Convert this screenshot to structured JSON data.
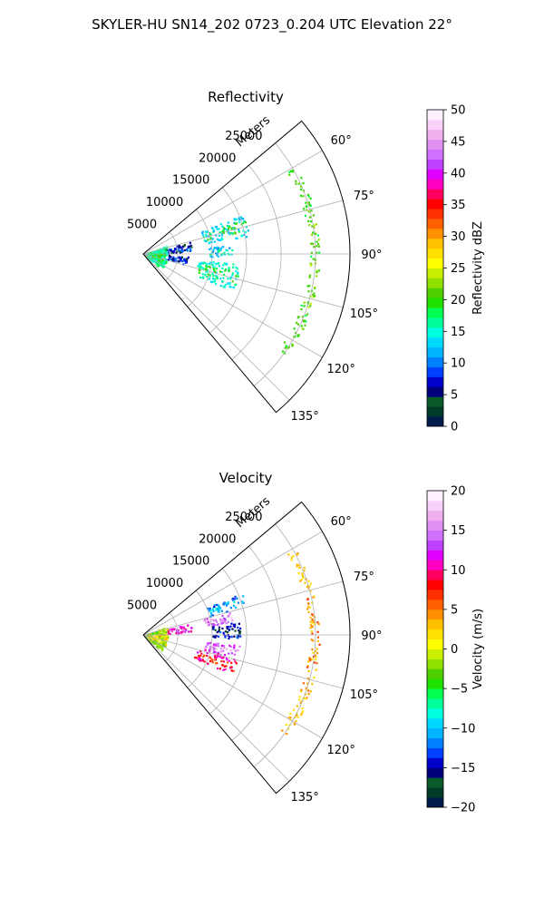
{
  "title": "SKYLER-HU  SN14_202  0723_0.204 UTC Elevation 22°",
  "chart_data": [
    {
      "type": "polar-sector",
      "title": "Reflectivity",
      "range_label": "Meters",
      "r_ticks": [
        5000,
        10000,
        15000,
        20000,
        25000
      ],
      "r_tick_labels": [
        "5000",
        "10000",
        "15000",
        "20000",
        "25000"
      ],
      "r_max": 30000,
      "theta_range": [
        50,
        140
      ],
      "theta_ticks": [
        60,
        75,
        90,
        105,
        120,
        135
      ],
      "theta_tick_labels": [
        "60°",
        "75°",
        "90°",
        "105°",
        "120°",
        "135°"
      ],
      "grid": true,
      "colorbar": {
        "label": "Reflectivity dBZ",
        "range": [
          0,
          50
        ],
        "ticks": [
          0,
          5,
          10,
          15,
          20,
          25,
          30,
          35,
          40,
          45,
          50
        ],
        "tick_labels": [
          "0",
          "5",
          "10",
          "15",
          "20",
          "25",
          "30",
          "35",
          "40",
          "45",
          "50"
        ],
        "colors": [
          "#001a4d",
          "#003b2a",
          "#0a5a2a",
          "#00007a",
          "#0000c8",
          "#0040ff",
          "#0080ff",
          "#00b4ff",
          "#00d8ff",
          "#00ffe0",
          "#00ff9a",
          "#00ff50",
          "#20e000",
          "#50d000",
          "#90e000",
          "#c8f000",
          "#ffff00",
          "#ffe000",
          "#ffc000",
          "#ff9000",
          "#ff6000",
          "#ff3000",
          "#ff0000",
          "#ff0060",
          "#ff00c0",
          "#e000ff",
          "#c040ff",
          "#d070ff",
          "#e090f0",
          "#f0b0f0",
          "#f8d0f8",
          "#fff0ff"
        ]
      },
      "echo_regions": [
        {
          "az": [
            68,
            80
          ],
          "r": [
            9000,
            15500
          ],
          "value": 13,
          "core_value": 19
        },
        {
          "az": [
            96,
            112
          ],
          "r": [
            8000,
            14000
          ],
          "value": 15,
          "core_value": 19
        },
        {
          "az": [
            84,
            92
          ],
          "r": [
            9500,
            13000
          ],
          "value": 12,
          "core_value": 16
        },
        {
          "az": [
            75,
            88
          ],
          "r": [
            3000,
            7000
          ],
          "value": 6,
          "core_value": 9
        },
        {
          "az": [
            92,
            104
          ],
          "r": [
            3500,
            6500
          ],
          "value": 6,
          "core_value": 9
        },
        {
          "az": [
            70,
            130
          ],
          "r": [
            400,
            3500
          ],
          "value": 16,
          "core_value": 20
        },
        {
          "az": [
            60,
            125
          ],
          "r": [
            24000,
            25500
          ],
          "value": 20,
          "core_value": 22
        }
      ]
    },
    {
      "type": "polar-sector",
      "title": "Velocity",
      "range_label": "Meters",
      "r_ticks": [
        5000,
        10000,
        15000,
        20000,
        25000
      ],
      "r_tick_labels": [
        "5000",
        "10000",
        "15000",
        "20000",
        "25000"
      ],
      "r_max": 30000,
      "theta_range": [
        50,
        140
      ],
      "theta_ticks": [
        60,
        75,
        90,
        105,
        120,
        135
      ],
      "theta_tick_labels": [
        "60°",
        "75°",
        "90°",
        "105°",
        "120°",
        "135°"
      ],
      "grid": true,
      "colorbar": {
        "label": "Velocity (m/s)",
        "range": [
          -20,
          20
        ],
        "ticks": [
          -20,
          -15,
          -10,
          -5,
          0,
          5,
          10,
          15,
          20
        ],
        "tick_labels": [
          "−20",
          "−15",
          "−10",
          "−5",
          "0",
          "5",
          "10",
          "15",
          "20"
        ],
        "colors": [
          "#001a4d",
          "#003b2a",
          "#0a5a2a",
          "#00007a",
          "#0000c8",
          "#0040ff",
          "#0080ff",
          "#00b4ff",
          "#00d8ff",
          "#00ffe0",
          "#00ff9a",
          "#00ff50",
          "#20e000",
          "#50d000",
          "#90e000",
          "#c8f000",
          "#ffff00",
          "#ffe000",
          "#ffc000",
          "#ff9000",
          "#ff6000",
          "#ff3000",
          "#ff0000",
          "#ff0060",
          "#ff00c0",
          "#e000ff",
          "#c040ff",
          "#d070ff",
          "#e090f0",
          "#f0b0f0",
          "#f8d0f8",
          "#fff0ff"
        ]
      },
      "echo_regions": [
        {
          "az": [
            66,
            74
          ],
          "r": [
            10000,
            15500
          ],
          "value": -12,
          "core_value": -10
        },
        {
          "az": [
            74,
            82
          ],
          "r": [
            9000,
            13000
          ],
          "value": 14,
          "core_value": 16
        },
        {
          "az": [
            82,
            92
          ],
          "r": [
            10000,
            14000
          ],
          "value": -14,
          "core_value": -16
        },
        {
          "az": [
            96,
            104
          ],
          "r": [
            9000,
            14000
          ],
          "value": 13,
          "core_value": 16
        },
        {
          "az": [
            104,
            114
          ],
          "r": [
            8000,
            14000
          ],
          "value": 10,
          "core_value": 7
        },
        {
          "az": [
            76,
            86
          ],
          "r": [
            3500,
            7000
          ],
          "value": 11,
          "core_value": 14
        },
        {
          "az": [
            70,
            130
          ],
          "r": [
            400,
            3500
          ],
          "value": -2,
          "core_value": 2
        },
        {
          "az": [
            60,
            125
          ],
          "r": [
            24000,
            25500
          ],
          "value": 3,
          "core_value": 5
        }
      ]
    }
  ]
}
